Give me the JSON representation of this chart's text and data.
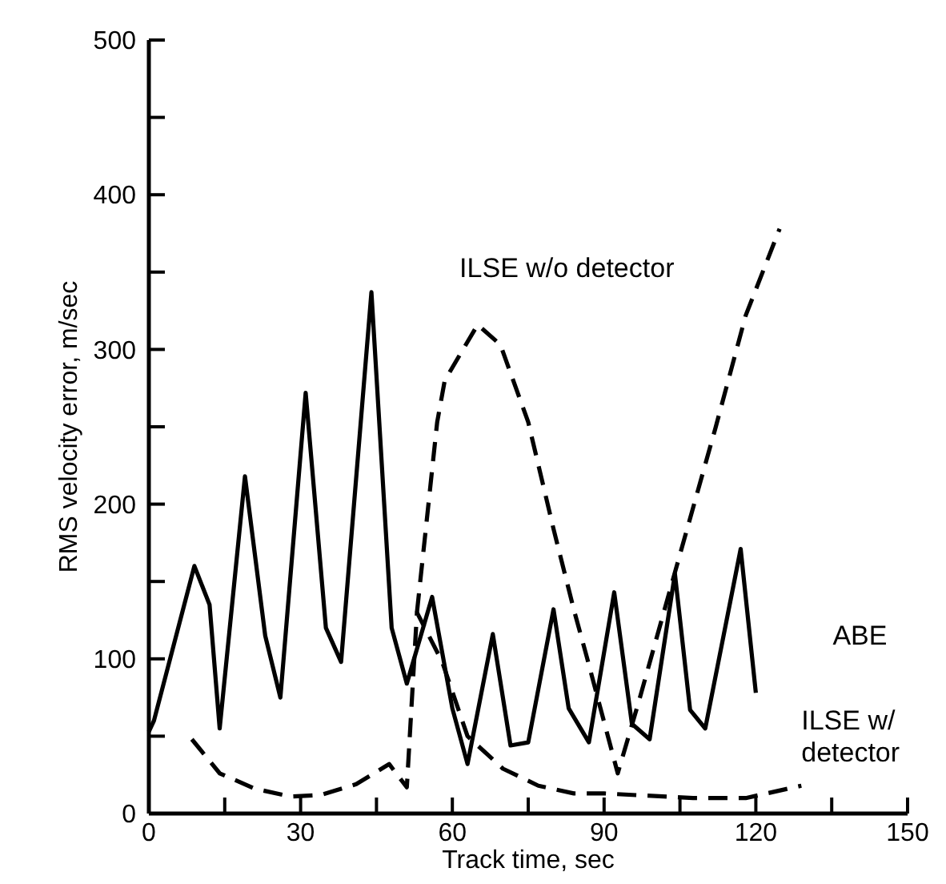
{
  "chart_data": {
    "type": "line",
    "xlabel": "Track time, sec",
    "ylabel": "RMS velocity error, m/sec",
    "xlim": [
      0,
      150
    ],
    "ylim": [
      0,
      500
    ],
    "xticks": [
      0,
      {
        "value": 15,
        "label": null
      },
      30,
      {
        "value": 45,
        "label": null
      },
      60,
      {
        "value": 75,
        "label": null
      },
      90,
      {
        "value": 105,
        "label": null
      },
      120,
      {
        "value": 135,
        "label": null
      },
      150
    ],
    "yticks": [
      0,
      {
        "value": 50,
        "label": null
      },
      100,
      {
        "value": 150,
        "label": null
      },
      200,
      {
        "value": 250,
        "label": null
      },
      300,
      {
        "value": 350,
        "label": null
      },
      400,
      {
        "value": 450,
        "label": null
      },
      500
    ],
    "grid": false,
    "legend": false,
    "marker": "none",
    "series": [
      {
        "name": "ABE",
        "color": "#000000",
        "line_style": "solid",
        "x": [
          0,
          1,
          9,
          12,
          14,
          19,
          23,
          26,
          31,
          35,
          38,
          44,
          48,
          51,
          56,
          60,
          63,
          68,
          71.5,
          75,
          80,
          83,
          87,
          92,
          95.5,
          99,
          104,
          107,
          110,
          117,
          120
        ],
        "values": [
          53,
          60,
          160,
          135,
          55,
          218,
          115,
          75,
          272,
          120,
          98,
          337,
          120,
          84,
          140,
          68,
          32,
          116,
          44,
          46,
          132,
          68,
          46,
          143,
          58,
          48,
          155,
          67,
          55,
          171,
          78
        ]
      },
      {
        "name": "ILSE w/o detector",
        "color": "#000000",
        "line_style": "dashed",
        "x": [
          53,
          57,
          58.5,
          65,
          69.5,
          75,
          80,
          84,
          86.6,
          92.7,
          97,
          103.5,
          112,
          118,
          124.7
        ],
        "values": [
          130,
          253,
          280,
          316,
          303,
          253,
          184,
          132,
          101,
          26,
          74,
          150,
          249,
          322,
          378
        ]
      },
      {
        "name": "ILSE w/ detector",
        "color": "#000000",
        "line_style": "dashed",
        "x": [
          8.5,
          14,
          21,
          28,
          34,
          41,
          47.5,
          51,
          53,
          58,
          63,
          70,
          77,
          84,
          90,
          107.6,
          118,
          129
        ],
        "values": [
          48,
          26,
          16,
          11,
          12,
          19,
          32,
          17,
          130,
          98,
          50,
          29,
          18,
          13,
          13,
          10,
          10,
          18
        ]
      }
    ]
  }
}
